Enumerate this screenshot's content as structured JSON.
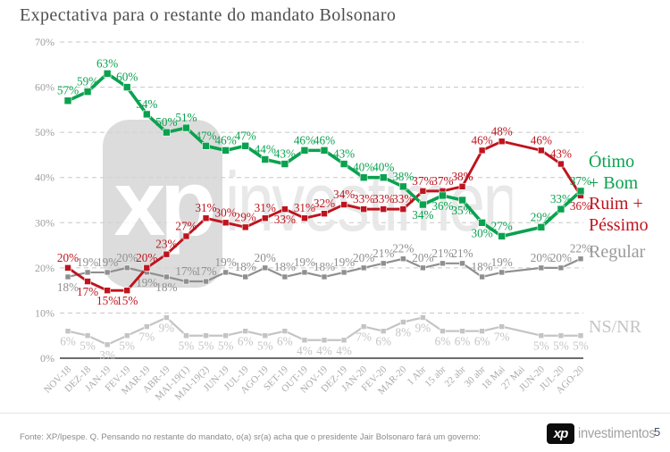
{
  "title": "Expectativa para o restante do mandato Bolsonaro",
  "chart_data": {
    "type": "line",
    "title": "Expectativa para o restante do mandato Bolsonaro",
    "categories": [
      "NOV-18",
      "DEZ-18",
      "JAN-19",
      "FEV-19",
      "MAR-19",
      "ABR-19",
      "MAI-19(1)",
      "MAI-19(2)",
      "JUN-19",
      "JUL-19",
      "AGO-19",
      "SET-19",
      "OUT-19",
      "NOV-19",
      "DEZ-19",
      "JAN-20",
      "FEV-20",
      "MAR-20",
      "1 Abr",
      "15 abr",
      "22 abr",
      "30 abr",
      "18 Mai",
      "27 Mai",
      "JUN-20",
      "JUL-20",
      "AGO-20"
    ],
    "ylim": [
      0,
      70
    ],
    "y_tick_labels": [
      "0%",
      "10%",
      "20%",
      "30%",
      "40%",
      "50%",
      "60%",
      "70%"
    ],
    "grid": "horizontal-dashed",
    "legend_position": "right",
    "note": "27 Mai appears on the axis but has no data points in any series",
    "value_suffix": "%",
    "series": [
      {
        "name": "Ótimo + Bom",
        "color": "#0aa24f",
        "values": [
          57,
          59,
          63,
          60,
          54,
          50,
          51,
          47,
          46,
          47,
          44,
          43,
          46,
          46,
          43,
          40,
          40,
          38,
          34,
          36,
          35,
          30,
          27,
          null,
          29,
          33,
          37
        ],
        "label_sides": "aaaaaaaaaaaaaaaaaabbbbaxaaa"
      },
      {
        "name": "Ruim + Péssimo",
        "color": "#be141e",
        "values": [
          20,
          17,
          15,
          15,
          20,
          23,
          27,
          31,
          30,
          29,
          31,
          33,
          31,
          32,
          34,
          33,
          33,
          33,
          37,
          37,
          38,
          46,
          48,
          null,
          46,
          43,
          36
        ],
        "label_sides": "abbbaaaaaaabaaaaaaaaaaaxaab"
      },
      {
        "name": "Regular",
        "color": "#8f8f8f",
        "values": [
          18,
          19,
          19,
          20,
          19,
          18,
          17,
          17,
          19,
          18,
          20,
          18,
          19,
          18,
          19,
          20,
          21,
          22,
          20,
          21,
          21,
          18,
          19,
          null,
          20,
          20,
          22
        ],
        "label_sides": "baaabbaaaaaaaaaaaaaaaaaxaaa"
      },
      {
        "name": "NS/NR",
        "color": "#c4c4c4",
        "values": [
          6,
          5,
          3,
          5,
          7,
          9,
          5,
          5,
          5,
          6,
          5,
          6,
          4,
          4,
          4,
          7,
          6,
          8,
          9,
          6,
          6,
          6,
          7,
          null,
          5,
          5,
          5
        ],
        "label_sides": "bbbbbbbbbbbbbbbbbbbbbbbxbbb"
      }
    ]
  },
  "legend": {
    "otimo": "Ótimo\n+ Bom",
    "ruim": "Ruim +\nPéssimo",
    "regular": "Regular",
    "nsnr": "NS/NR"
  },
  "watermark": {
    "tile_text": "xp",
    "brand_text": "investimentos"
  },
  "footer": {
    "source": "Fonte: XP/Ipespe. Q. Pensando no restante do mandato, o(a) sr(a) acha que o presidente Jair Bolsonaro fará um governo:",
    "logo_text": "xp",
    "logo_brand": "investimentos",
    "page_number": "5"
  }
}
